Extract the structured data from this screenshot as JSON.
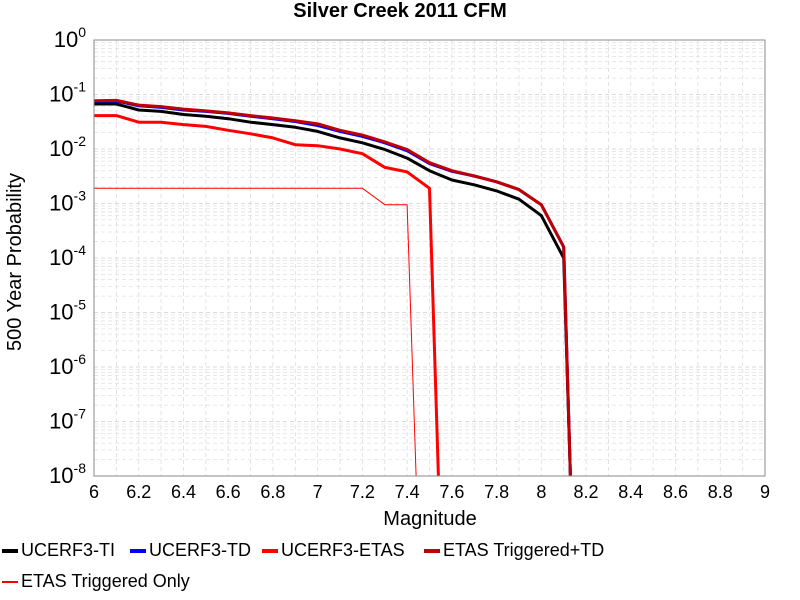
{
  "chart_data": {
    "type": "line",
    "title": "Silver Creek 2011 CFM",
    "xlabel": "Magnitude",
    "ylabel": "500 Year Probability",
    "xlim": [
      6,
      9
    ],
    "ylim": [
      1e-08,
      1
    ],
    "yscale": "log",
    "grid": true,
    "legend_position": "bottom",
    "x_ticks": [
      "6",
      "6.2",
      "6.4",
      "6.6",
      "6.8",
      "7",
      "7.2",
      "7.4",
      "7.6",
      "7.8",
      "8",
      "8.2",
      "8.4",
      "8.6",
      "8.8",
      "9"
    ],
    "y_ticks": [
      {
        "base": "10",
        "exp": "0"
      },
      {
        "base": "10",
        "exp": "-1"
      },
      {
        "base": "10",
        "exp": "-2"
      },
      {
        "base": "10",
        "exp": "-3"
      },
      {
        "base": "10",
        "exp": "-4"
      },
      {
        "base": "10",
        "exp": "-5"
      },
      {
        "base": "10",
        "exp": "-6"
      },
      {
        "base": "10",
        "exp": "-7"
      },
      {
        "base": "10",
        "exp": "-8"
      }
    ],
    "series": [
      {
        "name": "UCERF3-TI",
        "color": "#000000",
        "width": 3,
        "x": [
          6.0,
          6.1,
          6.2,
          6.3,
          6.4,
          6.5,
          6.6,
          6.7,
          6.8,
          6.9,
          7.0,
          7.1,
          7.2,
          7.3,
          7.4,
          7.5,
          7.6,
          7.7,
          7.8,
          7.9,
          8.0,
          8.1,
          8.13
        ],
        "y": [
          0.067,
          0.067,
          0.052,
          0.049,
          0.043,
          0.04,
          0.036,
          0.031,
          0.028,
          0.025,
          0.021,
          0.016,
          0.013,
          0.0098,
          0.0068,
          0.004,
          0.0027,
          0.0022,
          0.0017,
          0.0012,
          0.0006,
          0.0001,
          1e-08
        ]
      },
      {
        "name": "UCERF3-TD",
        "color": "#0000ff",
        "width": 3,
        "x": [
          6.0,
          6.1,
          6.2,
          6.3,
          6.4,
          6.5,
          6.6,
          6.7,
          6.8,
          6.9,
          7.0,
          7.1,
          7.2,
          7.3,
          7.4,
          7.5,
          7.6,
          7.7,
          7.8,
          7.9,
          8.0,
          8.1,
          8.13
        ],
        "y": [
          0.075,
          0.076,
          0.062,
          0.058,
          0.052,
          0.049,
          0.045,
          0.04,
          0.036,
          0.032,
          0.027,
          0.021,
          0.017,
          0.013,
          0.0093,
          0.0054,
          0.0039,
          0.0032,
          0.0025,
          0.0018,
          0.00095,
          0.00016,
          1e-08
        ]
      },
      {
        "name": "UCERF3-ETAS",
        "color": "#ff0000",
        "width": 3,
        "x": [
          6.0,
          6.1,
          6.2,
          6.3,
          6.4,
          6.5,
          6.6,
          6.7,
          6.8,
          6.9,
          7.0,
          7.1,
          7.2,
          7.3,
          7.4,
          7.5,
          7.54
        ],
        "y": [
          0.041,
          0.041,
          0.031,
          0.031,
          0.028,
          0.026,
          0.022,
          0.019,
          0.016,
          0.012,
          0.0115,
          0.01,
          0.0082,
          0.0046,
          0.0038,
          0.0019,
          1e-08
        ]
      },
      {
        "name": "ETAS Triggered+TD",
        "color": "#c00000",
        "width": 3,
        "x": [
          6.0,
          6.1,
          6.2,
          6.3,
          6.4,
          6.5,
          6.6,
          6.7,
          6.8,
          6.9,
          7.0,
          7.1,
          7.2,
          7.3,
          7.4,
          7.5,
          7.6,
          7.7,
          7.8,
          7.9,
          8.0,
          8.1,
          8.13
        ],
        "y": [
          0.077,
          0.078,
          0.064,
          0.06,
          0.054,
          0.05,
          0.046,
          0.041,
          0.037,
          0.033,
          0.029,
          0.022,
          0.018,
          0.0135,
          0.0098,
          0.0056,
          0.004,
          0.0032,
          0.0025,
          0.0018,
          0.00095,
          0.00016,
          1e-08
        ]
      },
      {
        "name": "ETAS Triggered Only",
        "color": "#ff0000",
        "width": 1,
        "x": [
          6.0,
          6.1,
          6.2,
          6.3,
          6.4,
          6.5,
          6.6,
          6.7,
          6.8,
          6.9,
          7.0,
          7.1,
          7.2,
          7.3,
          7.4,
          7.44
        ],
        "y": [
          0.0019,
          0.0019,
          0.0019,
          0.0019,
          0.0019,
          0.0019,
          0.0019,
          0.0019,
          0.0019,
          0.0019,
          0.0019,
          0.0019,
          0.0019,
          0.00095,
          0.00095,
          1e-08
        ]
      }
    ]
  }
}
